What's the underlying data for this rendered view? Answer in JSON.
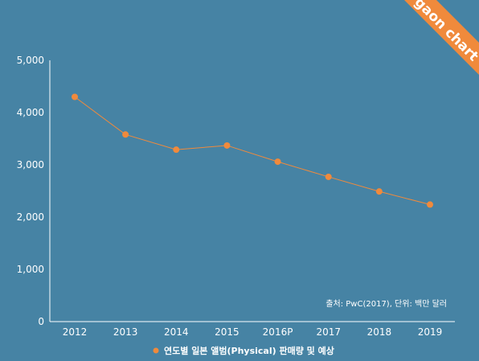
{
  "brand": {
    "label": "gaon chart",
    "color": "#f08a3c"
  },
  "colors": {
    "background": "#4683a4",
    "axis": "#ffffff",
    "series": "#f08a3c"
  },
  "chart_data": {
    "type": "line",
    "categories": [
      "2012",
      "2013",
      "2014",
      "2015",
      "2016P",
      "2017",
      "2018",
      "2019"
    ],
    "series": [
      {
        "name": "연도별 일본 앨범(Physical) 판매량 및 예상",
        "values": [
          4300,
          3580,
          3290,
          3370,
          3060,
          2770,
          2490,
          2240
        ]
      }
    ],
    "yticks": [
      0,
      1000,
      2000,
      3000,
      4000,
      5000
    ],
    "ytick_labels": [
      "0",
      "1,000",
      "2,000",
      "3,000",
      "4,000",
      "5,000"
    ],
    "ylim": [
      0,
      5000
    ],
    "grid": false,
    "legend": "bottom-center",
    "source_note": "출처: PwC(2017), 단위: 백만 달러"
  }
}
